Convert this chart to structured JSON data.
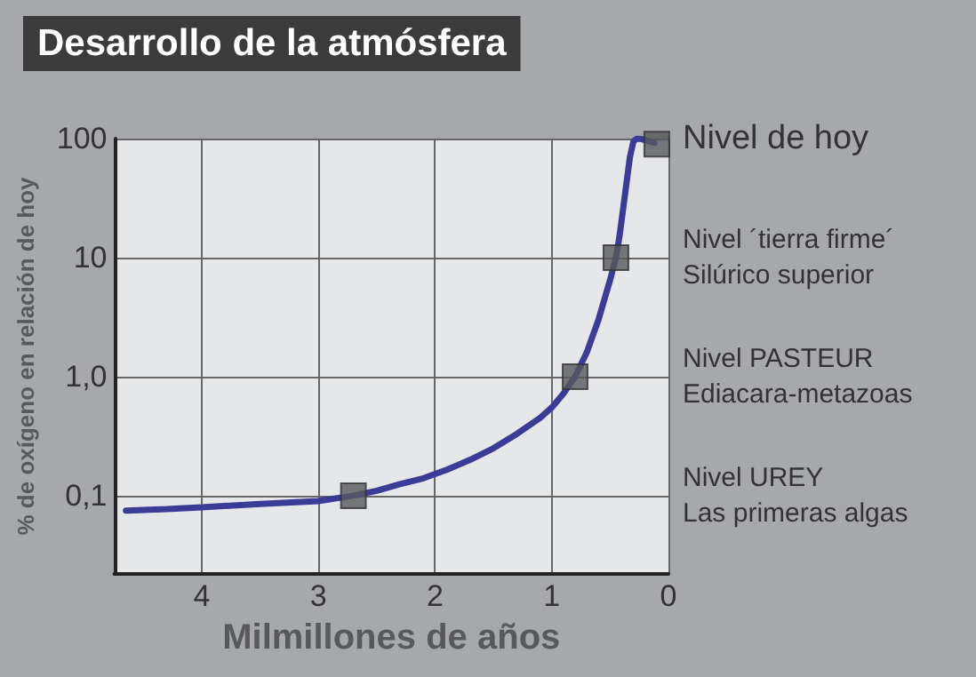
{
  "chart_data": {
    "type": "line",
    "title": "Desarrollo de la atmósfera",
    "xlabel": "Milmillones de años",
    "ylabel": "% de oxígeno en relación de hoy",
    "log": "y",
    "grid": true,
    "xlim": [
      4.75,
      0
    ],
    "xticks": [
      4,
      3,
      2,
      1,
      0
    ],
    "ylim": [
      0.022,
      100
    ],
    "yticks": [
      {
        "value": 0.1,
        "label": "0,1"
      },
      {
        "value": 1,
        "label": "1,0"
      },
      10,
      100
    ],
    "series": [
      {
        "color": "#3b3b98",
        "marker": "none",
        "x": [
          4.65,
          4.3,
          4,
          3.5,
          3,
          2.7,
          2.5,
          2.3,
          2.1,
          1.9,
          1.7,
          1.5,
          1.3,
          1.1,
          1,
          0.9,
          0.8,
          0.7,
          0.6,
          0.5,
          0.45,
          0.42,
          0.39,
          0.36,
          0.33,
          0.3,
          0.27,
          0.23,
          0.18,
          0.12
        ],
        "values": [
          0.075,
          0.077,
          0.08,
          0.085,
          0.09,
          0.1,
          0.11,
          0.125,
          0.14,
          0.165,
          0.2,
          0.25,
          0.33,
          0.45,
          0.55,
          0.72,
          1.0,
          1.6,
          3,
          6.5,
          10,
          15,
          25,
          42,
          70,
          95,
          100,
          99,
          96,
          92
        ]
      },
      {
        "type": "scatter",
        "color": "#58595b",
        "marker": "square",
        "x": [
          2.7,
          0.8,
          0.45,
          0.1
        ],
        "values": [
          0.1,
          1.0,
          10,
          90
        ]
      }
    ],
    "annotations": [
      "Nivel de hoy",
      "Nivel ´tierra firme´\nSilúrico superior",
      "Nivel PASTEUR\nEdiacara-metazoas",
      "Nivel UREY\nLas primeras algas"
    ]
  }
}
